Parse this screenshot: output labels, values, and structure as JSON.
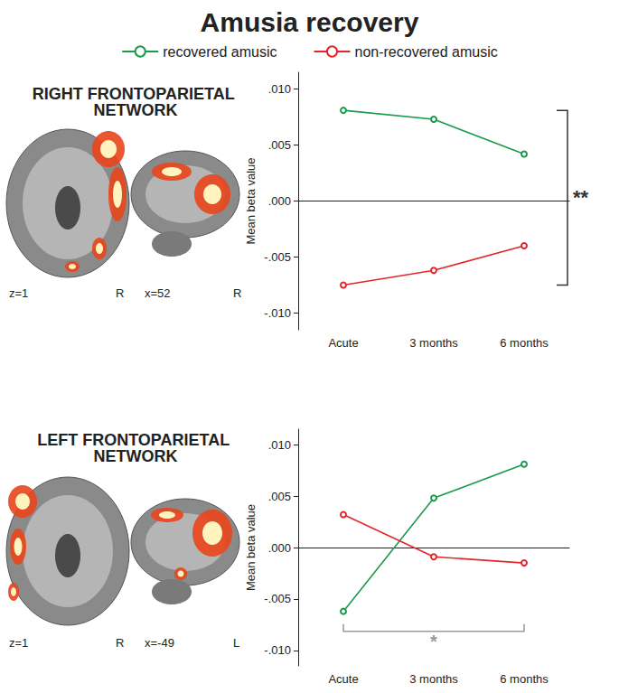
{
  "title": "Amusia recovery",
  "chart_data": [
    {
      "type": "line",
      "title": "RIGHT FRONTOPARIETAL NETWORK",
      "brain_slices": [
        {
          "slice": "z=1",
          "side": "R"
        },
        {
          "slice": "x=52",
          "side": "R"
        }
      ],
      "ylabel": "Mean beta value",
      "categories": [
        "Acute",
        "3 months",
        "6 months"
      ],
      "series": [
        {
          "name": "recovered amusic",
          "color": "#1a9a4a",
          "values": [
            0.0081,
            0.0073,
            0.0042
          ]
        },
        {
          "name": "non-recovered amusic",
          "color": "#e3262b",
          "values": [
            -0.0075,
            -0.0062,
            -0.004
          ]
        }
      ],
      "ylim": [
        -0.0115,
        0.0115
      ],
      "yticks": [
        {
          "value": -0.01,
          "label": "-.010"
        },
        {
          "value": -0.005,
          "label": "-.005"
        },
        {
          "value": 0,
          "label": ".000"
        },
        {
          "value": 0.005,
          "label": ".005"
        },
        {
          "value": 0.01,
          "label": ".010"
        }
      ],
      "grid": false,
      "annotations": [
        {
          "text": "**",
          "color": "#333333",
          "orientation": "vertical"
        }
      ]
    },
    {
      "type": "line",
      "title": "LEFT FRONTOPARIETAL NETWORK",
      "brain_slices": [
        {
          "slice": "z=1",
          "side": "R"
        },
        {
          "slice": "x=-49",
          "side": "L"
        }
      ],
      "ylabel": "Mean beta value",
      "categories": [
        "Acute",
        "3 months",
        "6 months"
      ],
      "series": [
        {
          "name": "recovered amusic",
          "color": "#1a9a4a",
          "values": [
            -0.0062,
            0.0048,
            0.0081
          ]
        },
        {
          "name": "non-recovered amusic",
          "color": "#e3262b",
          "values": [
            0.0032,
            -0.0009,
            -0.0015
          ]
        }
      ],
      "ylim": [
        -0.0115,
        0.0115
      ],
      "yticks": [
        {
          "value": -0.01,
          "label": "-.010"
        },
        {
          "value": -0.005,
          "label": "-.005"
        },
        {
          "value": 0,
          "label": ".000"
        },
        {
          "value": 0.005,
          "label": ".005"
        },
        {
          "value": 0.01,
          "label": ".010"
        }
      ],
      "grid": false,
      "annotations": [
        {
          "text": "*",
          "color": "#999999",
          "orientation": "horizontal"
        }
      ]
    }
  ]
}
